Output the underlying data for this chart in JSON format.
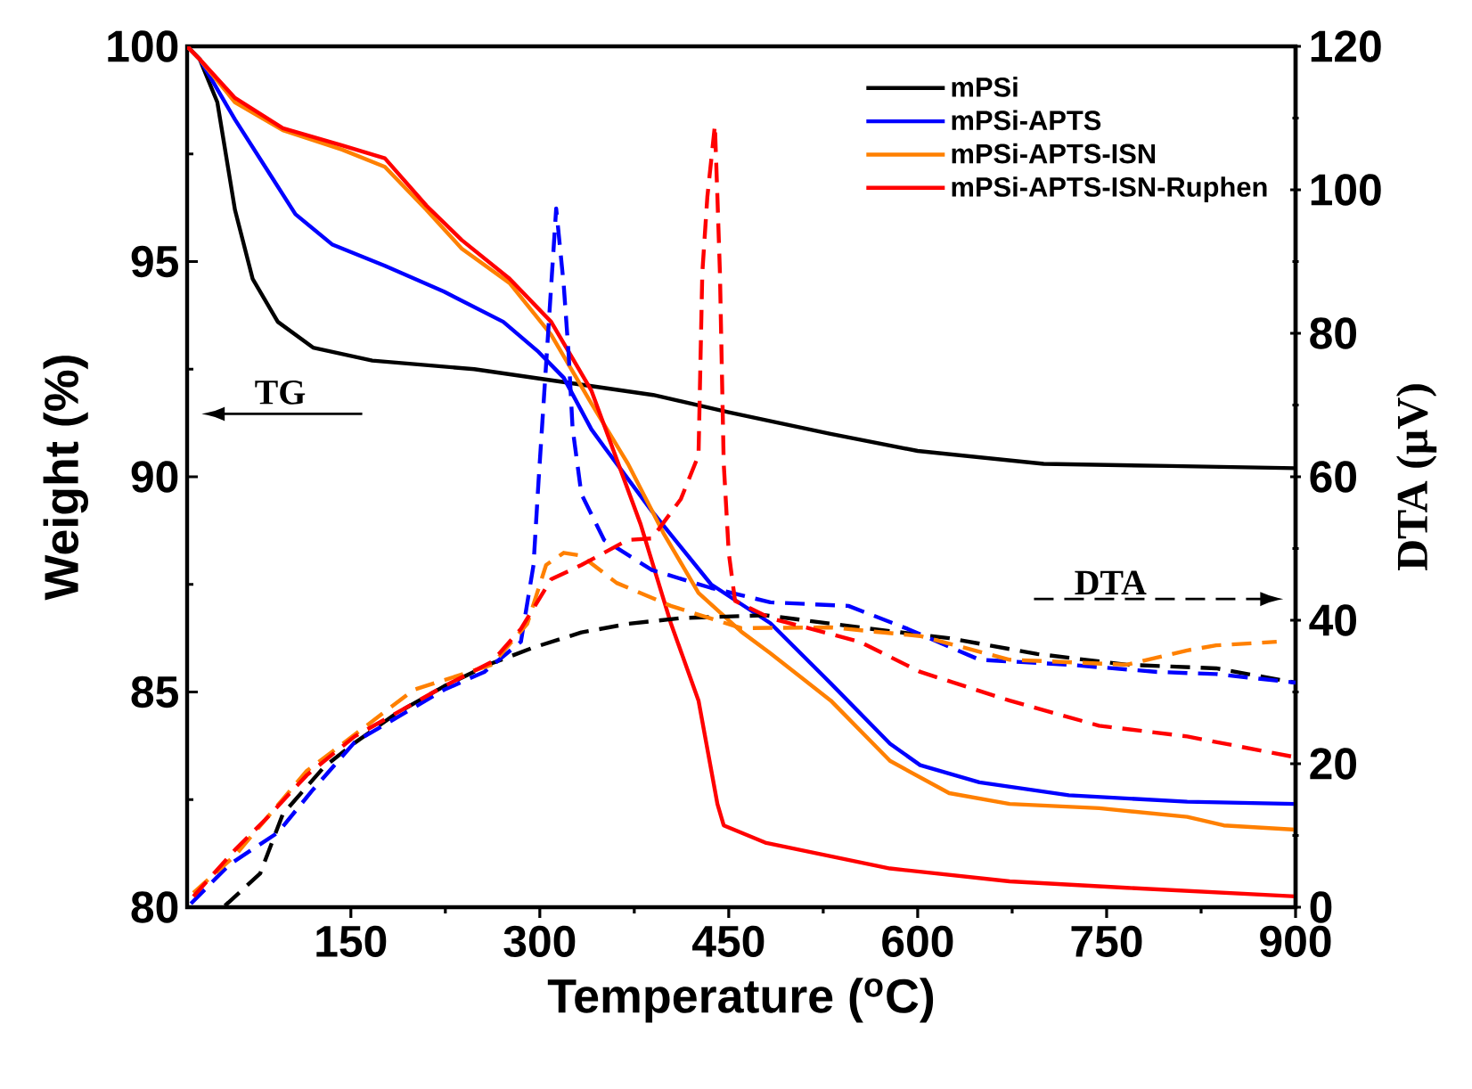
{
  "chart_data": {
    "type": "line",
    "xlabel": "Temperature ($^{o}$C)",
    "ylabel": "Weight (%)",
    "y2label": "DTA (µV)",
    "xlim": [
      20,
      900
    ],
    "xticks": [
      150,
      300,
      450,
      600,
      750,
      900
    ],
    "ylim": [
      80,
      100
    ],
    "yticks": [
      80,
      85,
      90,
      95,
      100
    ],
    "y2lim": [
      0,
      120
    ],
    "y2ticks": [
      0,
      20,
      40,
      60,
      80,
      100,
      120
    ],
    "legend": "top right",
    "annotations": [
      "TG",
      "DTA"
    ],
    "series": [
      {
        "name": "mPSi",
        "color": "#000000",
        "line_style": "solid",
        "x": [
          20,
          30,
          44,
          58,
          72,
          92,
          120,
          167,
          248,
          319,
          390,
          450,
          530,
          600,
          700,
          800,
          900
        ],
        "values": [
          100,
          99.7,
          98.7,
          96.2,
          94.6,
          93.6,
          93.0,
          92.7,
          92.5,
          92.2,
          91.9,
          91.5,
          91.0,
          90.6,
          90.3,
          90.25,
          90.2
        ]
      },
      {
        "name": "mPSi-APTS",
        "color": "#0000ff",
        "line_style": "solid",
        "x": [
          20,
          30,
          58,
          82,
          106,
          135,
          177,
          224,
          271,
          299,
          319,
          341,
          351,
          389,
          436,
          483,
          531,
          578,
          602,
          649,
          720,
          814,
          900
        ],
        "values": [
          100,
          99.7,
          98.3,
          97.2,
          96.1,
          95.4,
          94.9,
          94.3,
          93.6,
          92.9,
          92.3,
          91.1,
          90.7,
          89.2,
          87.5,
          86.6,
          85.2,
          83.8,
          83.3,
          82.9,
          82.6,
          82.45,
          82.4
        ]
      },
      {
        "name": "mPSi-APTS-ISN",
        "color": "#ff8000",
        "line_style": "solid",
        "x": [
          20,
          30,
          58,
          96,
          143,
          177,
          210,
          238,
          276,
          309,
          341,
          370,
          398,
          426,
          460,
          483,
          531,
          578,
          625,
          673,
          744,
          814,
          843,
          900
        ],
        "values": [
          100,
          99.7,
          98.7,
          98.05,
          97.6,
          97.2,
          96.2,
          95.3,
          94.5,
          93.3,
          91.7,
          90.3,
          88.7,
          87.3,
          86.4,
          85.9,
          84.8,
          83.4,
          82.65,
          82.4,
          82.3,
          82.1,
          81.9,
          81.8
        ]
      },
      {
        "name": "mPSi-APTS-ISN-Ruphen",
        "color": "#ff0000",
        "line_style": "solid",
        "x": [
          20,
          30,
          58,
          96,
          143,
          177,
          210,
          238,
          276,
          309,
          341,
          380,
          404,
          426,
          441,
          446,
          479,
          578,
          673,
          766,
          900
        ],
        "values": [
          100,
          99.7,
          98.8,
          98.1,
          97.7,
          97.4,
          96.3,
          95.5,
          94.6,
          93.6,
          92.0,
          88.9,
          86.6,
          84.8,
          82.4,
          81.9,
          81.5,
          80.9,
          80.6,
          80.45,
          80.25
        ]
      },
      {
        "color": "#000000",
        "line_style": "dashed",
        "axis": "y2",
        "x": [
          50,
          78,
          96,
          129,
          153,
          186,
          224,
          262,
          295,
          333,
          370,
          412,
          479,
          554,
          625,
          695,
          766,
          837,
          900
        ],
        "values": [
          0.2,
          4.7,
          13,
          19.6,
          22.9,
          27,
          30.8,
          34,
          36.2,
          38.3,
          39.5,
          40.3,
          40.7,
          39,
          37.5,
          35.3,
          33.8,
          33.3,
          31.3
        ]
      },
      {
        "color": "#0000ff",
        "line_style": "dashed",
        "axis": "y2",
        "x": [
          23,
          54,
          92,
          120,
          153,
          224,
          256,
          285,
          295,
          299,
          313,
          319,
          323,
          326,
          333,
          351,
          389,
          436,
          483,
          545,
          592,
          649,
          720,
          790,
          837,
          900
        ],
        "values": [
          0.5,
          6,
          10.4,
          16.4,
          23,
          30.3,
          32.8,
          37,
          47.7,
          59.4,
          97.4,
          86.7,
          76.8,
          66.8,
          57.6,
          51.2,
          47,
          44.5,
          42.5,
          42,
          38.8,
          34.5,
          33.8,
          32.8,
          32.5,
          31.3
        ]
      },
      {
        "color": "#ff8000",
        "line_style": "dashed",
        "axis": "y2",
        "x": [
          25,
          58,
          115,
          200,
          262,
          290,
          305,
          319,
          333,
          361,
          404,
          460,
          531,
          602,
          673,
          766,
          814,
          837,
          885
        ],
        "values": [
          2,
          7.2,
          19,
          30.3,
          33.8,
          39.5,
          47.7,
          49.4,
          49,
          45.2,
          42,
          38.9,
          39,
          37.8,
          34.5,
          33.8,
          35.8,
          36.5,
          37
        ]
      },
      {
        "color": "#ff0000",
        "line_style": "dashed",
        "axis": "y2",
        "x": [
          25,
          58,
          82,
          115,
          153,
          224,
          262,
          285,
          309,
          333,
          370,
          389,
          412,
          426,
          429,
          433,
          439,
          441,
          443,
          446,
          450,
          455,
          483,
          554,
          602,
          673,
          744,
          814,
          900
        ],
        "values": [
          1.5,
          8,
          12.2,
          18.4,
          23.8,
          30.8,
          34.2,
          38.8,
          45.7,
          47.7,
          51.2,
          51.4,
          56.9,
          63,
          88.4,
          99,
          109,
          99,
          88.4,
          61.9,
          49.4,
          42.7,
          40.3,
          37,
          32.8,
          28.8,
          25.3,
          23.8,
          20.9
        ]
      }
    ]
  }
}
